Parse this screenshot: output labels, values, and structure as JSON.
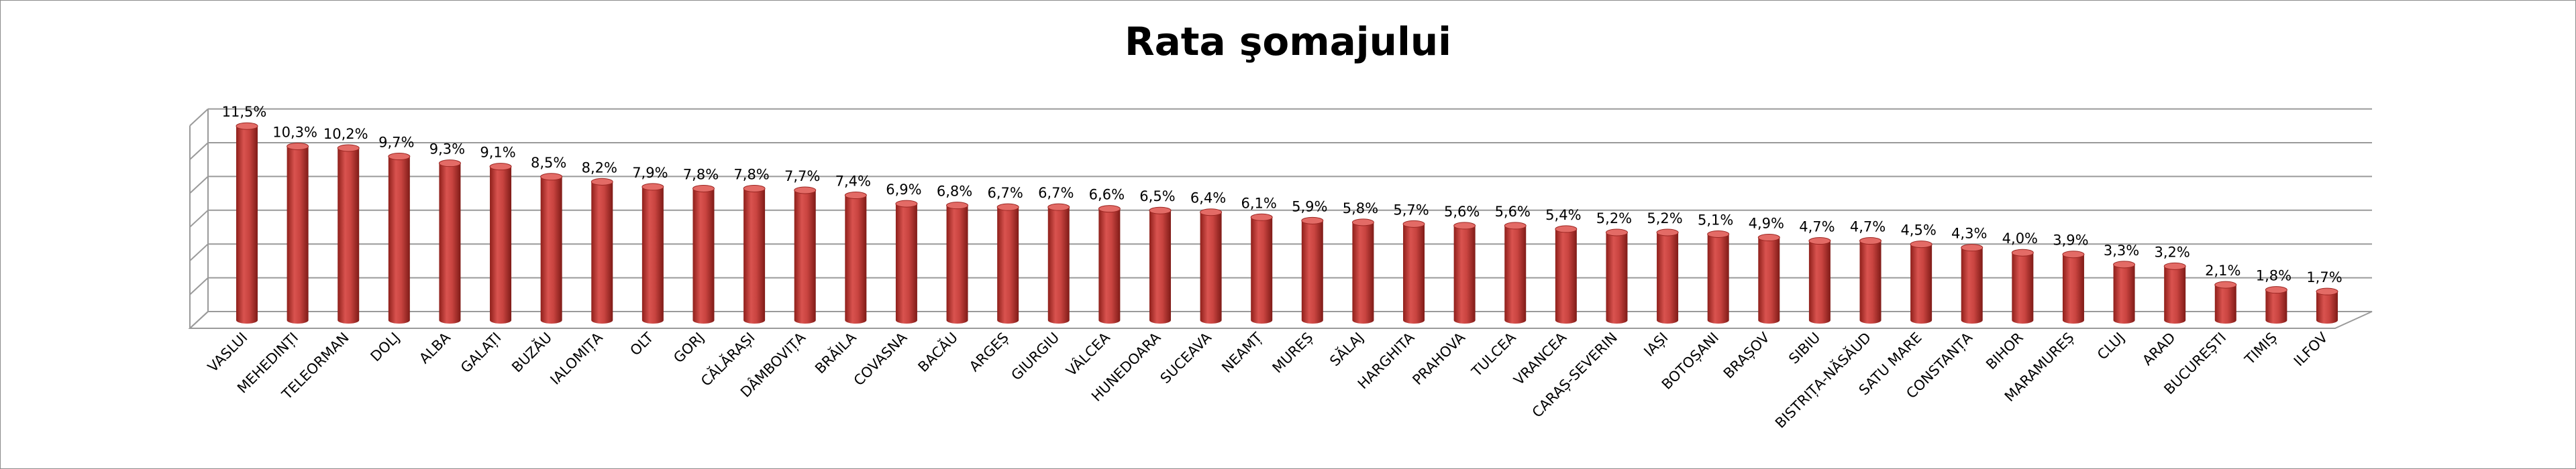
{
  "chart_data": {
    "type": "bar",
    "title": "Rata şomajului",
    "xlabel": "",
    "ylabel": "",
    "ylim": [
      0,
      12
    ],
    "grid": true,
    "legend": "none",
    "bar_color": "#c0392b",
    "categories": [
      "VASLUI",
      "MEHEDINȚI",
      "TELEORMAN",
      "DOLJ",
      "ALBA",
      "GALAȚI",
      "BUZĂU",
      "IALOMIȚA",
      "OLT",
      "GORJ",
      "CĂLĂRAȘI",
      "DÂMBOVIȚA",
      "BRĂILA",
      "COVASNA",
      "BACĂU",
      "ARGEȘ",
      "GIURGIU",
      "VÂLCEA",
      "HUNEDOARA",
      "SUCEAVA",
      "NEAMȚ",
      "MUREȘ",
      "SĂLAJ",
      "HARGHITA",
      "PRAHOVA",
      "TULCEA",
      "VRANCEA",
      "CARAȘ-SEVERIN",
      "IAȘI",
      "BOTOȘANI",
      "BRAȘOV",
      "SIBIU",
      "BISTRIȚA-NĂSĂUD",
      "SATU MARE",
      "CONSTANȚA",
      "BIHOR",
      "MARAMUREȘ",
      "CLUJ",
      "ARAD",
      "BUCUREȘTI",
      "TIMIȘ",
      "ILFOV"
    ],
    "values": [
      11.5,
      10.3,
      10.2,
      9.7,
      9.3,
      9.1,
      8.5,
      8.2,
      7.9,
      7.8,
      7.8,
      7.7,
      7.4,
      6.9,
      6.8,
      6.7,
      6.7,
      6.6,
      6.5,
      6.4,
      6.1,
      5.9,
      5.8,
      5.7,
      5.6,
      5.6,
      5.4,
      5.2,
      5.2,
      5.1,
      4.9,
      4.7,
      4.7,
      4.5,
      4.3,
      4.0,
      3.9,
      3.3,
      3.2,
      2.1,
      1.8,
      1.7
    ],
    "value_labels": [
      "11,5%",
      "10,3%",
      "10,2%",
      "9,7%",
      "9,3%",
      "9,1%",
      "8,5%",
      "8,2%",
      "7,9%",
      "7,8%",
      "7,8%",
      "7,7%",
      "7,4%",
      "6,9%",
      "6,8%",
      "6,7%",
      "6,7%",
      "6,6%",
      "6,5%",
      "6,4%",
      "6,1%",
      "5,9%",
      "5,8%",
      "5,7%",
      "5,6%",
      "5,6%",
      "5,4%",
      "5,2%",
      "5,2%",
      "5,1%",
      "4,9%",
      "4,7%",
      "4,7%",
      "4,5%",
      "4,3%",
      "4,0%",
      "3,9%",
      "3,3%",
      "3,2%",
      "2,1%",
      "1,8%",
      "1,7%"
    ]
  }
}
